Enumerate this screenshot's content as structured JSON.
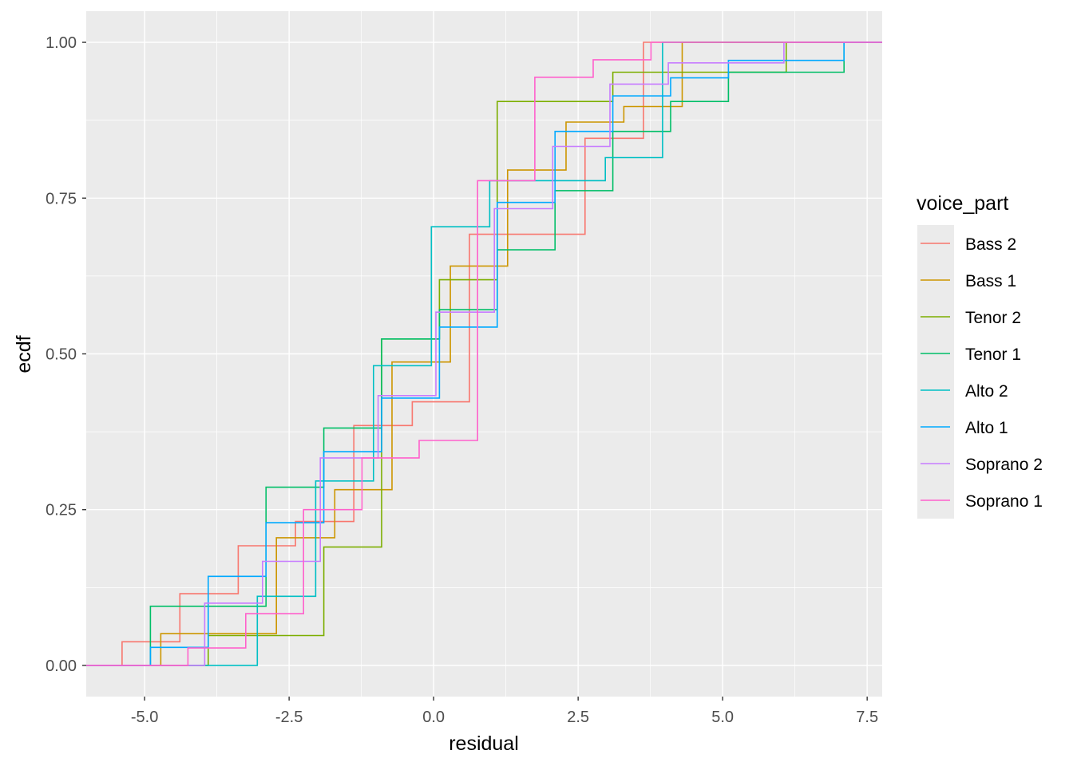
{
  "chart_data": {
    "type": "line",
    "subtype": "ecdf-step",
    "xlabel": "residual",
    "ylabel": "ecdf",
    "xlim": [
      -6.01,
      7.76
    ],
    "ylim": [
      -0.05,
      1.05
    ],
    "x_ticks": [
      -5.0,
      -2.5,
      0.0,
      2.5,
      5.0,
      7.5
    ],
    "x_tick_labels": [
      "-5.0",
      "-2.5",
      "0.0",
      "2.5",
      "5.0",
      "7.5"
    ],
    "y_ticks": [
      0,
      0.25,
      0.5,
      0.75,
      1
    ],
    "y_tick_labels": [
      "0.00",
      "0.25",
      "0.50",
      "0.75",
      "1.00"
    ],
    "grid": true,
    "legend": {
      "title": "voice_part",
      "placement": "right"
    },
    "series": [
      {
        "name": "Bass 2",
        "color": "#F8766D",
        "steps": [
          [
            -5.39,
            0.038
          ],
          [
            -4.39,
            0.115
          ],
          [
            -3.38,
            0.192
          ],
          [
            -2.39,
            0.231
          ],
          [
            -1.38,
            0.385
          ],
          [
            -0.37,
            0.423
          ],
          [
            0.62,
            0.692
          ],
          [
            2.62,
            0.846
          ],
          [
            3.63,
            1.0
          ]
        ]
      },
      {
        "name": "Bass 1",
        "color": "#CD9600",
        "steps": [
          [
            -4.72,
            0.051
          ],
          [
            -2.72,
            0.205
          ],
          [
            -1.71,
            0.282
          ],
          [
            -0.72,
            0.487
          ],
          [
            0.29,
            0.641
          ],
          [
            1.28,
            0.795
          ],
          [
            2.29,
            0.872
          ],
          [
            3.29,
            0.897
          ],
          [
            4.3,
            1.0
          ]
        ]
      },
      {
        "name": "Tenor 2",
        "color": "#7CAE00",
        "steps": [
          [
            -3.9,
            0.048
          ],
          [
            -1.9,
            0.19
          ],
          [
            -0.9,
            0.524
          ],
          [
            0.1,
            0.619
          ],
          [
            1.1,
            0.905
          ],
          [
            3.1,
            0.952
          ],
          [
            6.1,
            1.0
          ]
        ]
      },
      {
        "name": "Tenor 1",
        "color": "#00BE67",
        "steps": [
          [
            -4.9,
            0.095
          ],
          [
            -2.9,
            0.286
          ],
          [
            -1.9,
            0.381
          ],
          [
            -0.9,
            0.524
          ],
          [
            0.1,
            0.571
          ],
          [
            1.1,
            0.667
          ],
          [
            2.1,
            0.762
          ],
          [
            3.1,
            0.857
          ],
          [
            4.1,
            0.905
          ],
          [
            5.1,
            0.952
          ],
          [
            7.1,
            1.0
          ]
        ]
      },
      {
        "name": "Alto 2",
        "color": "#00BFC4",
        "steps": [
          [
            -3.05,
            0.111
          ],
          [
            -2.04,
            0.296
          ],
          [
            -1.04,
            0.481
          ],
          [
            -0.04,
            0.704
          ],
          [
            0.97,
            0.778
          ],
          [
            2.97,
            0.815
          ],
          [
            3.96,
            1.0
          ]
        ]
      },
      {
        "name": "Alto 1",
        "color": "#00A9FF",
        "steps": [
          [
            -4.9,
            0.029
          ],
          [
            -3.9,
            0.143
          ],
          [
            -2.9,
            0.229
          ],
          [
            -1.9,
            0.343
          ],
          [
            -0.9,
            0.429
          ],
          [
            0.1,
            0.543
          ],
          [
            1.1,
            0.743
          ],
          [
            2.1,
            0.857
          ],
          [
            3.1,
            0.914
          ],
          [
            4.1,
            0.943
          ],
          [
            5.1,
            0.971
          ],
          [
            7.1,
            1.0
          ]
        ]
      },
      {
        "name": "Soprano 2",
        "color": "#C77CFF",
        "steps": [
          [
            -3.96,
            0.1
          ],
          [
            -2.96,
            0.167
          ],
          [
            -1.96,
            0.333
          ],
          [
            -0.96,
            0.433
          ],
          [
            0.04,
            0.567
          ],
          [
            1.05,
            0.733
          ],
          [
            2.06,
            0.833
          ],
          [
            3.05,
            0.933
          ],
          [
            4.06,
            0.967
          ],
          [
            6.06,
            1.0
          ]
        ]
      },
      {
        "name": "Soprano 1",
        "color": "#FF61CC",
        "steps": [
          [
            -4.25,
            0.028
          ],
          [
            -3.25,
            0.083
          ],
          [
            -2.25,
            0.25
          ],
          [
            -1.24,
            0.333
          ],
          [
            -0.25,
            0.361
          ],
          [
            0.76,
            0.778
          ],
          [
            1.75,
            0.944
          ],
          [
            2.76,
            0.972
          ],
          [
            3.76,
            1.0
          ]
        ]
      }
    ]
  }
}
